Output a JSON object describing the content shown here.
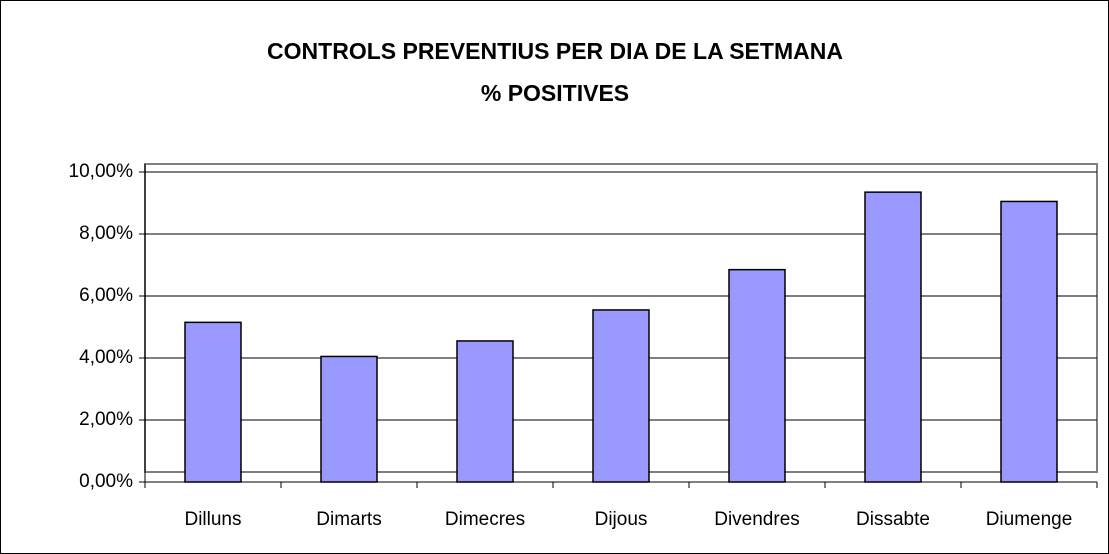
{
  "chart_data": {
    "type": "bar",
    "title": "CONTROLS PREVENTIUS PER DIA DE LA SETMANA",
    "subtitle": "% POSITIVES",
    "categories": [
      "Dilluns",
      "Dimarts",
      "Dimecres",
      "Dijous",
      "Divendres",
      "Dissabte",
      "Diumenge"
    ],
    "values": [
      5.15,
      4.05,
      4.55,
      5.55,
      6.85,
      9.35,
      9.05
    ],
    "color": "#9999ff",
    "ylim": [
      0,
      10
    ],
    "yticks": [
      {
        "value": 0,
        "label": "0,00%"
      },
      {
        "value": 2,
        "label": "2,00%"
      },
      {
        "value": 4,
        "label": "4,00%"
      },
      {
        "value": 6,
        "label": "6,00%"
      },
      {
        "value": 8,
        "label": "8,00%"
      },
      {
        "value": 10,
        "label": "10,00%"
      }
    ],
    "grid": true
  }
}
